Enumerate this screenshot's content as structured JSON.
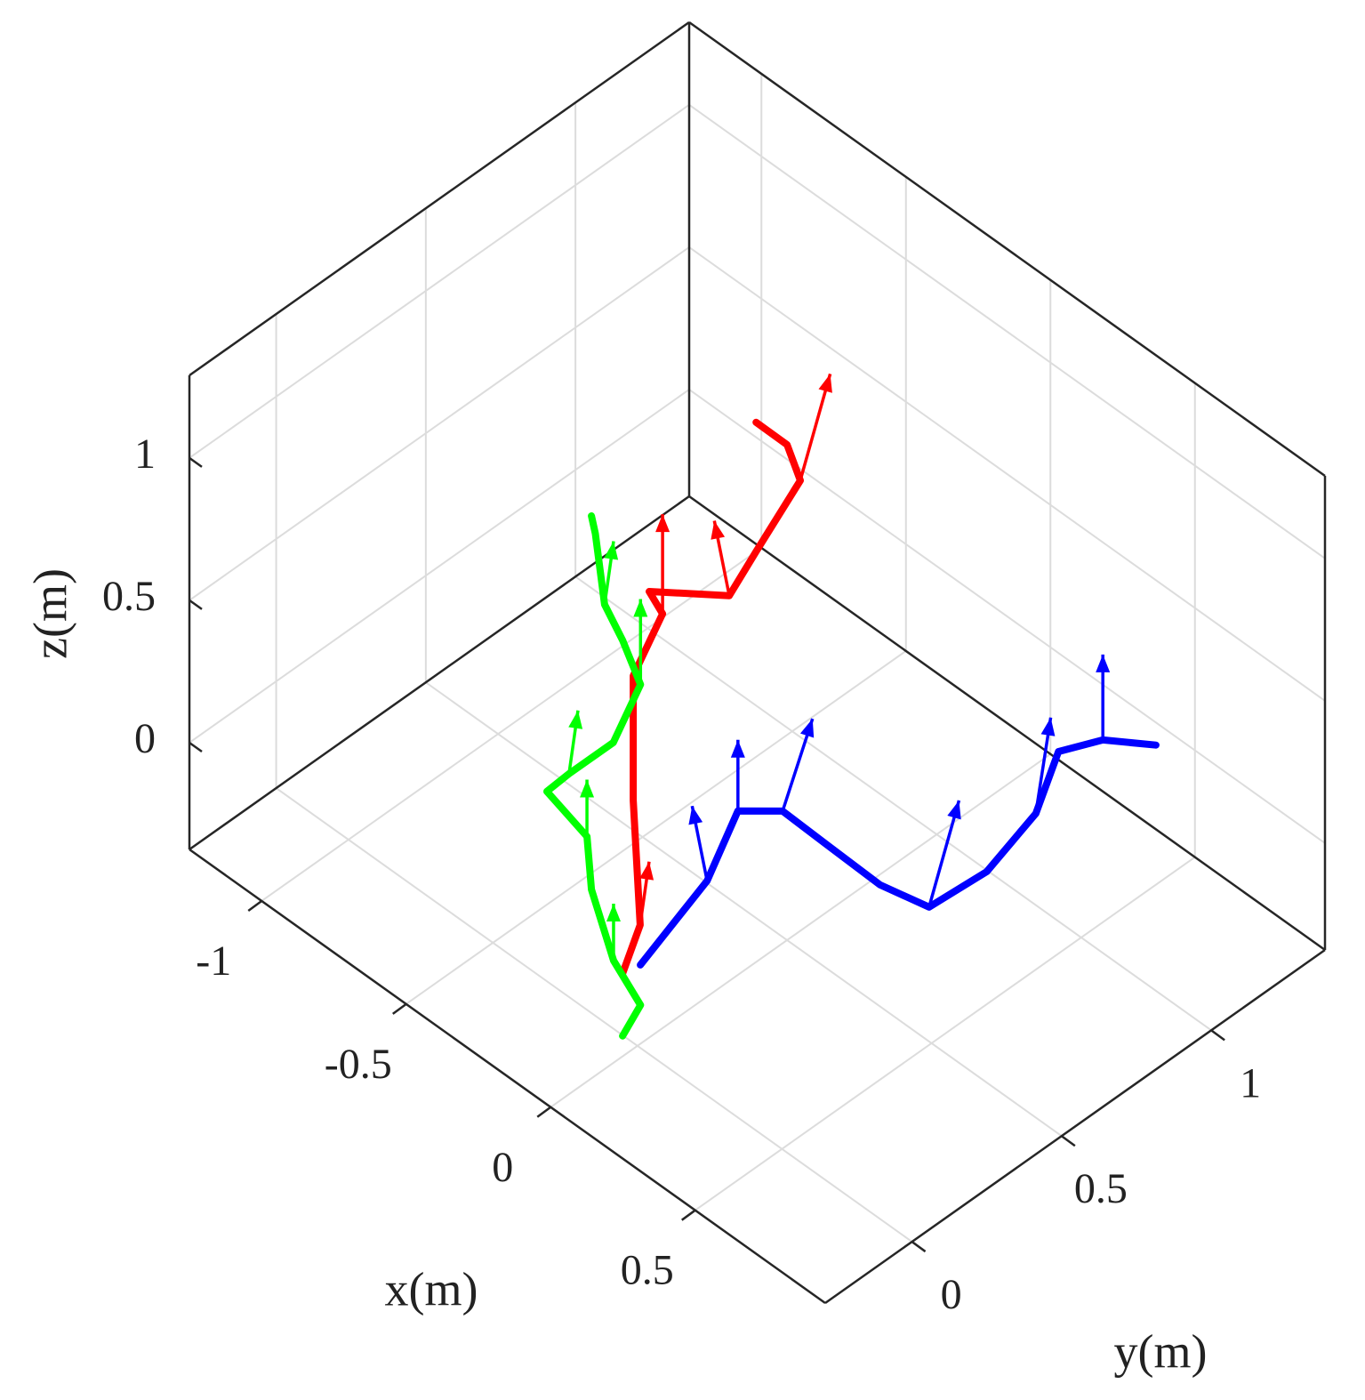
{
  "chart_data": {
    "type": "line3d",
    "xlabel": "x(m)",
    "ylabel": "y(m)",
    "zlabel": "z(m)",
    "xlim": [
      -1.25,
      0.95
    ],
    "ylim": [
      -0.29,
      1.38
    ],
    "zlim": [
      -0.375,
      1.29
    ],
    "xticks": [
      -1,
      -0.5,
      0,
      0.5
    ],
    "yticks": [
      0,
      0.5,
      1
    ],
    "zticks": [
      0,
      0.5,
      1
    ],
    "grid": true,
    "series": [
      {
        "color": "#0000ff",
        "x": [
          0.068,
          -0.022,
          -0.139,
          -0.062,
          0.096,
          0.286,
          0.424,
          0.437,
          0.38,
          0.268,
          0.316,
          0.42
        ],
        "y": [
          -0.056,
          0.254,
          0.47,
          0.545,
          0.54,
          0.535,
          0.565,
          0.745,
          0.964,
          1.148,
          1.25,
          1.327
        ],
        "z": [
          0,
          0,
          0,
          0,
          0,
          0,
          0,
          0,
          0,
          0,
          0,
          0
        ],
        "u": [
          null,
          0,
          0,
          0,
          null,
          null,
          0,
          null,
          0,
          null,
          0,
          null
        ],
        "v": [
          null,
          -0.05,
          0,
          0.1,
          null,
          null,
          0.1,
          null,
          0.05,
          null,
          0,
          null
        ],
        "w": [
          null,
          0.3,
          0.25,
          0.25,
          null,
          null,
          0.3,
          null,
          0.3,
          null,
          0.3,
          null
        ]
      },
      {
        "color": "#ff0000",
        "x": [
          0.059,
          0.059,
          0.059,
          0.059,
          0.059,
          0.059,
          -0.2,
          -0.5,
          -0.5,
          -0.5,
          -0.5
        ],
        "y": [
          -0.107,
          -0.048,
          -0.071,
          -0.071,
          0.027,
          -0.018,
          0.5,
          0.879,
          1.027,
          0.983,
          0.879
        ],
        "z": [
          0,
          0.128,
          0.582,
          1.02,
          1.165,
          1.277,
          0.69,
          0.346,
          0.486,
          0.644,
          0.8
        ],
        "u": [
          null,
          0,
          null,
          null,
          0,
          null,
          0,
          null,
          0,
          null,
          null
        ],
        "v": [
          null,
          0.03,
          null,
          null,
          0,
          null,
          -0.05,
          null,
          0.1,
          null,
          null
        ],
        "w": [
          null,
          0.2,
          null,
          null,
          0.35,
          null,
          0.3,
          null,
          0.3,
          null,
          null
        ]
      },
      {
        "color": "#00ff00",
        "x": [
          0.2,
          0.2,
          0.2,
          -0.3,
          -0.3,
          -0.3,
          -0.3,
          -0.3,
          -0.3,
          -0.3,
          -0.3,
          -0.3,
          -0.3
        ],
        "y": [
          -0.243,
          -0.183,
          -0.273,
          0.136,
          0.121,
          -0.013,
          0.061,
          0.209,
          0.3,
          0.24,
          0.18,
          0.149,
          0.136
        ],
        "z": [
          -0.015,
          0.049,
          0.272,
          -0.144,
          0.053,
          0.311,
          0.318,
          0.318,
          0.454,
          0.654,
          0.824,
          1.096,
          1.168
        ],
        "u": [
          null,
          null,
          0,
          null,
          0,
          null,
          0,
          null,
          0,
          null,
          0,
          null,
          null
        ],
        "v": [
          null,
          null,
          0,
          null,
          0,
          null,
          0.03,
          null,
          0,
          null,
          0.03,
          null,
          null
        ],
        "w": [
          null,
          null,
          0.2,
          null,
          0.2,
          null,
          0.2,
          null,
          0.3,
          null,
          0.2,
          null,
          null
        ]
      }
    ]
  }
}
